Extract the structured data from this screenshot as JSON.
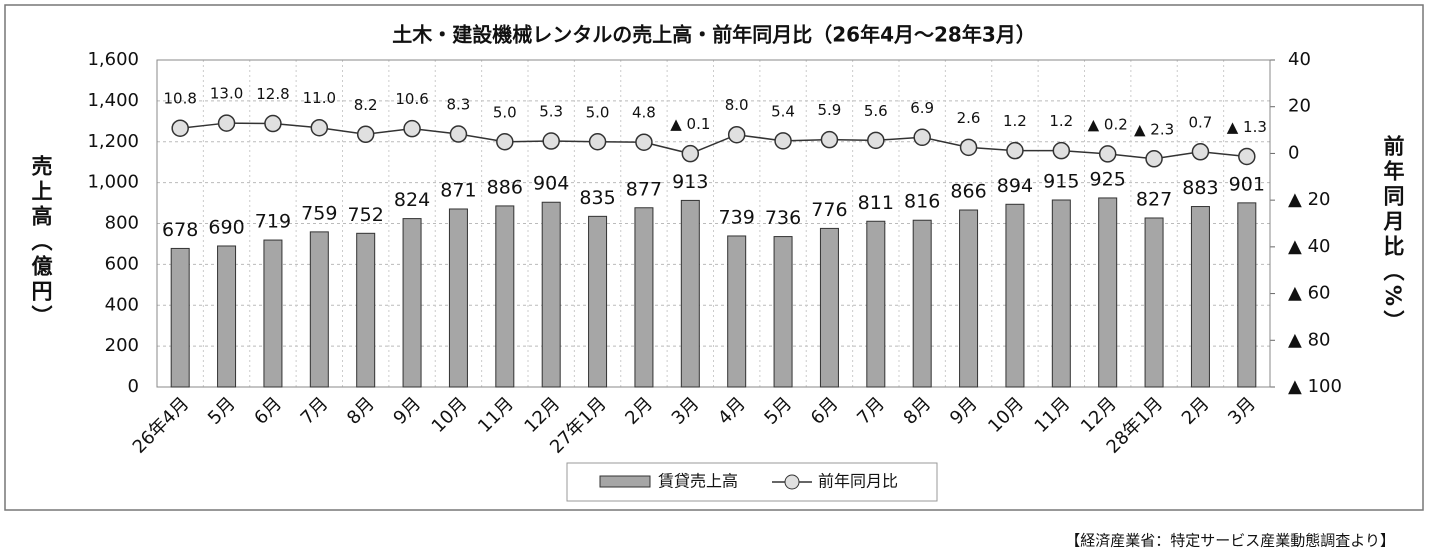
{
  "chart_data": {
    "type": "bar_line",
    "title": "土木・建設機械レンタルの売上高・前年同月比（26年4月～28年3月）",
    "y_label": "売上高（億円）",
    "y2_label": "前年同月比（%）",
    "source": "【経済産業省：特定サービス産業動態調査より】",
    "categories": [
      "26年4月",
      "5月",
      "6月",
      "7月",
      "8月",
      "9月",
      "10月",
      "11月",
      "12月",
      "27年1月",
      "2月",
      "3月",
      "4月",
      "5月",
      "6月",
      "7月",
      "8月",
      "9月",
      "10月",
      "11月",
      "12月",
      "28年1月",
      "2月",
      "3月"
    ],
    "series": [
      {
        "name": "賃貸売上高",
        "type": "bar",
        "color": "#a6a6a6",
        "values": [
          678,
          690,
          719,
          759,
          752,
          824,
          871,
          886,
          904,
          835,
          877,
          913,
          739,
          736,
          776,
          811,
          816,
          866,
          894,
          915,
          925,
          827,
          883,
          901
        ]
      },
      {
        "name": "前年同月比",
        "type": "line",
        "axis": "y2",
        "color": "#333333",
        "values": [
          10.8,
          13.0,
          12.8,
          11.0,
          8.2,
          10.6,
          8.3,
          5.0,
          5.3,
          5.0,
          4.8,
          -0.1,
          8.0,
          5.4,
          5.9,
          5.6,
          6.9,
          2.6,
          1.2,
          1.2,
          -0.2,
          -2.3,
          0.7,
          -1.3
        ],
        "value_labels": [
          "10.8",
          "13.0",
          "12.8",
          "11.0",
          "8.2",
          "10.6",
          "8.3",
          "5.0",
          "5.3",
          "5.0",
          "4.8",
          "▲ 0.1",
          "8.0",
          "5.4",
          "5.9",
          "5.6",
          "6.9",
          "2.6",
          "1.2",
          "1.2",
          "▲ 0.2",
          "▲ 2.3",
          "0.7",
          "▲ 1.3"
        ]
      }
    ],
    "ylim": [
      0,
      1600
    ],
    "yticks": [
      0,
      200,
      400,
      600,
      800,
      {
        "value": 1000,
        "label": "1,000"
      },
      {
        "value": 1200,
        "label": "1,200"
      },
      {
        "value": 1400,
        "label": "1,400"
      },
      {
        "value": 1600,
        "label": "1,600"
      }
    ],
    "y2lim": [
      -100,
      40
    ],
    "y2ticks": [
      {
        "value": -100,
        "label": "▲ 100"
      },
      {
        "value": -80,
        "label": "▲ 80"
      },
      {
        "value": -60,
        "label": "▲ 60"
      },
      {
        "value": -40,
        "label": "▲ 40"
      },
      {
        "value": -20,
        "label": "▲ 20"
      },
      0,
      20,
      40
    ],
    "grid": true,
    "legend": "bottom"
  }
}
